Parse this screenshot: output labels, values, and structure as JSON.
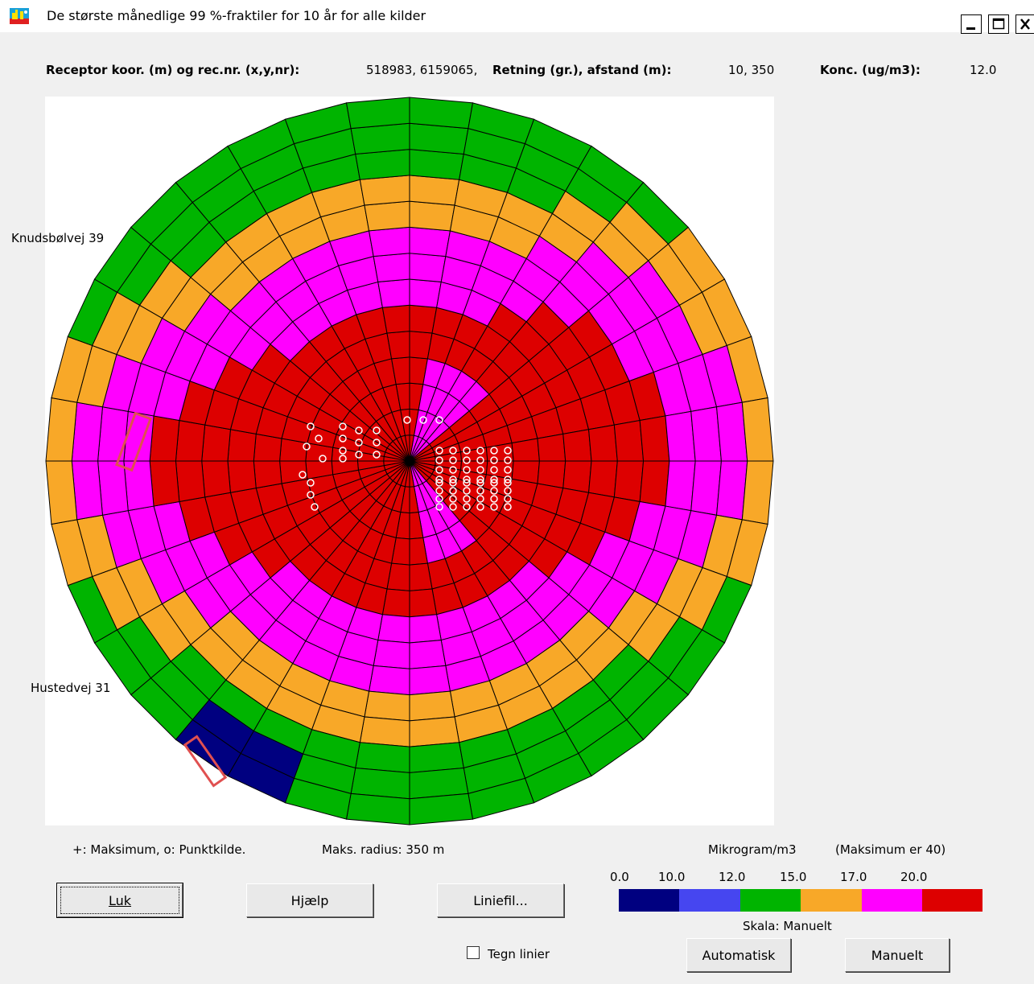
{
  "window": {
    "title": "De største månedlige 99 %-fraktiler for 10 år for alle kilder",
    "minimize_label": "_",
    "maximize_label": "□",
    "close_label": "✕"
  },
  "header": {
    "receptor_label": "Receptor koor. (m) og rec.nr. (x,y,nr):",
    "receptor_value": "518983, 6159065,",
    "direction_label": "Retning (gr.), afstand (m):",
    "direction_value": "10, 350",
    "conc_label": "Konc. (ug/m3):",
    "conc_value": "12.0"
  },
  "map_labels": {
    "label1": "Knudsbølvej 39",
    "label2": "Hustedvej 31"
  },
  "footer": {
    "legend_text": "+:  Maksimum,  o:  Punktkilde.",
    "radius_text": "Maks. radius:  350 m",
    "unit_text": "Mikrogram/m3",
    "max_text": "(Maksimum er  40)",
    "scale_ticks": [
      "0.0",
      "10.0",
      "12.0",
      "15.0",
      "17.0",
      "20.0"
    ],
    "scale_colors": [
      "#000080",
      "#4646f0",
      "#00b400",
      "#f8a828",
      "#ff00ff",
      "#dd0000"
    ],
    "scale_mode": "Skala:  Manuelt"
  },
  "buttons": {
    "close_label": "Luk",
    "help_label": "Hjælp",
    "linefile_label": "Liniefil...",
    "auto_label": "Automatisk",
    "manual_label": "Manuelt"
  },
  "checkbox": {
    "label": "Tegn linier",
    "checked": false
  },
  "polar_plot": {
    "sectors": 36,
    "rings": 14,
    "max_radius_m": 350
  }
}
